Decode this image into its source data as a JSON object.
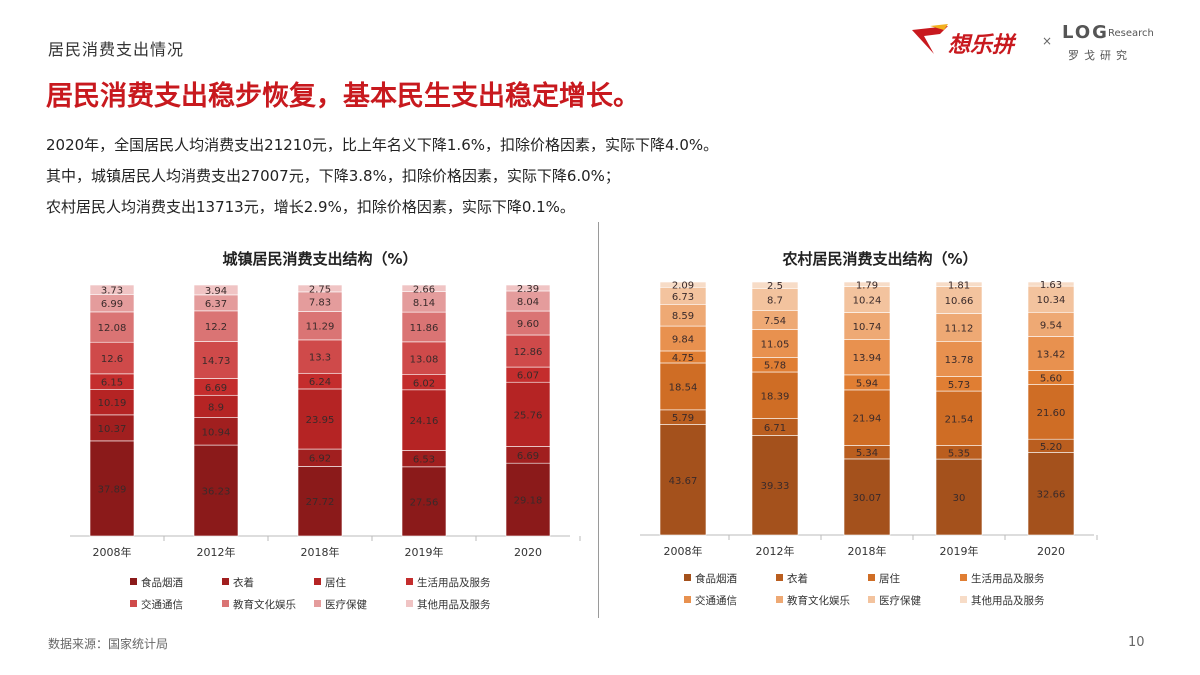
{
  "header": {
    "section_title": "居民消费支出情况",
    "headline": "居民消费支出稳步恢复，基本民生支出稳定增长。",
    "logo_main": "想乐拼",
    "logo_x": "×",
    "logo_log": "LOG",
    "logo_research": "Research",
    "logo_sub": "罗戈研究"
  },
  "description": {
    "line1": "2020年，全国居民人均消费支出21210元，比上年名义下降1.6%，扣除价格因素，实际下降4.0%。",
    "line2": "其中，城镇居民人均消费支出27007元，下降3.8%，扣除价格因素，实际下降6.0%；",
    "line3": "农村居民人均消费支出13713元，增长2.9%，扣除价格因素，实际下降0.1%。"
  },
  "footer": {
    "source": "数据来源：国家统计局",
    "page_number": "10"
  },
  "chart_data": [
    {
      "type": "bar",
      "stacked": true,
      "title": "城镇居民消费支出结构（%）",
      "categories": [
        "2008年",
        "2012年",
        "2018年",
        "2019年",
        "2020"
      ],
      "legend_position": "bottom",
      "series": [
        {
          "name": "食品烟酒",
          "color": "#8b1a1a",
          "values": [
            37.89,
            36.23,
            27.72,
            27.56,
            29.18
          ],
          "labels": [
            "37.89",
            "36.23",
            "27.72",
            "27.56",
            "29.18"
          ]
        },
        {
          "name": "衣着",
          "color": "#a11f1f",
          "values": [
            10.37,
            10.94,
            6.92,
            6.53,
            6.69
          ],
          "labels": [
            "10.37",
            "10.94",
            "6.92",
            "6.53",
            "6.69"
          ]
        },
        {
          "name": "居住",
          "color": "#b52424",
          "values": [
            10.19,
            8.9,
            23.95,
            24.16,
            25.76
          ],
          "labels": [
            "10.19",
            "8.9",
            "23.95",
            "24.16",
            "25.76"
          ]
        },
        {
          "name": "生活用品及服务",
          "color": "#c42d2d",
          "values": [
            6.15,
            6.69,
            6.24,
            6.02,
            6.07
          ],
          "labels": [
            "6.15",
            "6.69",
            "6.24",
            "6.02",
            "6.07"
          ]
        },
        {
          "name": "交通通信",
          "color": "#cf4a4a",
          "values": [
            12.6,
            14.73,
            13.3,
            13.08,
            12.86
          ],
          "labels": [
            "12.6",
            "14.73",
            "13.3",
            "13.08",
            "12.86"
          ]
        },
        {
          "name": "教育文化娱乐",
          "color": "#da7474",
          "values": [
            12.08,
            12.2,
            11.29,
            11.86,
            9.6
          ],
          "labels": [
            "12.08",
            "12.2",
            "11.29",
            "11.86",
            "9.60"
          ]
        },
        {
          "name": "医疗保健",
          "color": "#e49c9c",
          "values": [
            6.99,
            6.37,
            7.83,
            8.14,
            8.04
          ],
          "labels": [
            "6.99",
            "6.37",
            "7.83",
            "8.14",
            "8.04"
          ]
        },
        {
          "name": "其他用品及服务",
          "color": "#f0c4c4",
          "values": [
            3.73,
            3.94,
            2.75,
            2.66,
            2.39
          ],
          "labels": [
            "3.73",
            "3.94",
            "2.75",
            "2.66",
            "2.39"
          ]
        }
      ]
    },
    {
      "type": "bar",
      "stacked": true,
      "title": "农村居民消费支出结构（%）",
      "categories": [
        "2008年",
        "2012年",
        "2018年",
        "2019年",
        "2020"
      ],
      "legend_position": "bottom",
      "series": [
        {
          "name": "食品烟酒",
          "color": "#a4511c",
          "values": [
            43.67,
            39.33,
            30.07,
            30,
            32.66
          ],
          "labels": [
            "43.67",
            "39.33",
            "30.07",
            "30",
            "32.66"
          ]
        },
        {
          "name": "衣着",
          "color": "#ba5e1f",
          "values": [
            5.79,
            6.71,
            5.34,
            5.35,
            5.2
          ],
          "labels": [
            "5.79",
            "6.71",
            "5.34",
            "5.35",
            "5.20"
          ]
        },
        {
          "name": "居住",
          "color": "#cf6d25",
          "values": [
            18.54,
            18.39,
            21.94,
            21.54,
            21.6
          ],
          "labels": [
            "18.54",
            "18.39",
            "21.94",
            "21.54",
            "21.60"
          ]
        },
        {
          "name": "生活用品及服务",
          "color": "#e07e33",
          "values": [
            4.75,
            5.78,
            5.94,
            5.73,
            5.6
          ],
          "labels": [
            "4.75",
            "5.78",
            "5.94",
            "5.73",
            "5.60"
          ]
        },
        {
          "name": "交通通信",
          "color": "#e8914f",
          "values": [
            9.84,
            11.05,
            13.94,
            13.78,
            13.42
          ],
          "labels": [
            "9.84",
            "11.05",
            "13.94",
            "13.78",
            "13.42"
          ]
        },
        {
          "name": "教育文化娱乐",
          "color": "#eea974",
          "values": [
            8.59,
            7.54,
            10.74,
            11.12,
            9.54
          ],
          "labels": [
            "8.59",
            "7.54",
            "10.74",
            "11.12",
            "9.54"
          ]
        },
        {
          "name": "医疗保健",
          "color": "#f3c39e",
          "values": [
            6.73,
            8.7,
            10.24,
            10.66,
            10.34
          ],
          "labels": [
            "6.73",
            "8.7",
            "10.24",
            "10.66",
            "10.34"
          ]
        },
        {
          "name": "其他用品及服务",
          "color": "#f7dcc7",
          "values": [
            2.09,
            2.5,
            1.79,
            1.81,
            1.63
          ],
          "labels": [
            "2.09",
            "2.5",
            "1.79",
            "1.81",
            "1.63"
          ]
        }
      ]
    }
  ]
}
